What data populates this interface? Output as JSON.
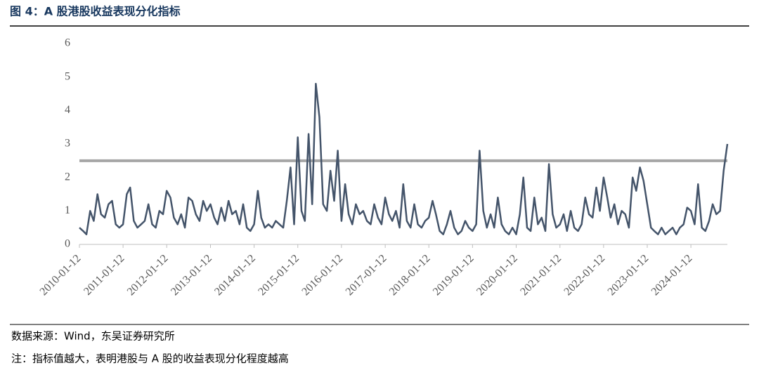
{
  "chart_data": {
    "type": "line",
    "title": "图 4：A 股港股收益表现分化指标",
    "source": "数据来源：Wind，东吴证券研究所",
    "note": "注：指标值越大，表明港股与 A 股的收益表现分化程度越高",
    "xlim": [
      "2010-01-12",
      "2024-11-12"
    ],
    "xticks": [
      "2010-01-12",
      "2011-01-12",
      "2012-01-12",
      "2013-01-12",
      "2014-01-12",
      "2015-01-12",
      "2016-01-12",
      "2017-01-12",
      "2018-01-12",
      "2019-01-12",
      "2020-01-12",
      "2021-01-12",
      "2022-01-12",
      "2023-01-12",
      "2024-01-12"
    ],
    "ylim": [
      0,
      6
    ],
    "yticks": [
      0,
      1,
      2,
      3,
      4,
      5,
      6
    ],
    "threshold": 2.5,
    "threshold_color": "#a6a6a6",
    "series": [
      {
        "color": "#44546a",
        "values": [
          0.5,
          0.4,
          0.3,
          1.0,
          0.7,
          1.5,
          0.9,
          0.8,
          1.2,
          1.3,
          0.6,
          0.5,
          0.6,
          1.5,
          1.7,
          0.7,
          0.5,
          0.6,
          0.7,
          1.2,
          0.6,
          0.5,
          1.0,
          0.9,
          1.6,
          1.4,
          0.8,
          0.6,
          0.9,
          0.5,
          1.4,
          1.3,
          0.9,
          0.7,
          1.3,
          1.0,
          1.2,
          0.8,
          0.6,
          1.1,
          0.7,
          1.3,
          0.9,
          1.0,
          0.6,
          1.2,
          0.5,
          0.4,
          0.6,
          1.6,
          0.8,
          0.5,
          0.6,
          0.5,
          0.7,
          0.6,
          0.5,
          1.3,
          2.3,
          0.6,
          3.2,
          1.0,
          0.7,
          3.3,
          1.2,
          4.8,
          3.8,
          1.2,
          1.0,
          2.2,
          1.3,
          2.8,
          0.7,
          1.8,
          0.9,
          0.6,
          1.2,
          0.9,
          1.0,
          0.7,
          0.6,
          1.2,
          0.8,
          0.6,
          1.4,
          0.9,
          0.7,
          1.0,
          0.5,
          1.8,
          0.7,
          0.5,
          1.2,
          0.6,
          0.5,
          0.7,
          0.8,
          1.3,
          0.9,
          0.4,
          0.3,
          0.6,
          1.0,
          0.5,
          0.3,
          0.4,
          0.7,
          0.5,
          0.4,
          0.6,
          2.8,
          1.0,
          0.5,
          0.9,
          0.5,
          1.4,
          0.6,
          0.4,
          0.3,
          0.5,
          0.3,
          0.9,
          2.0,
          0.5,
          0.4,
          1.4,
          0.6,
          0.8,
          0.4,
          2.4,
          0.9,
          0.5,
          0.6,
          0.9,
          0.4,
          1.0,
          0.5,
          0.4,
          0.6,
          1.4,
          0.9,
          0.8,
          1.7,
          1.0,
          2.0,
          1.4,
          0.8,
          1.2,
          0.6,
          1.0,
          0.9,
          0.5,
          2.0,
          1.6,
          2.3,
          1.9,
          1.2,
          0.5,
          0.4,
          0.3,
          0.5,
          0.3,
          0.4,
          0.5,
          0.3,
          0.5,
          0.6,
          1.1,
          1.0,
          0.6,
          1.8,
          0.5,
          0.4,
          0.7,
          1.2,
          0.9,
          1.0,
          2.2,
          3.0
        ]
      }
    ]
  }
}
